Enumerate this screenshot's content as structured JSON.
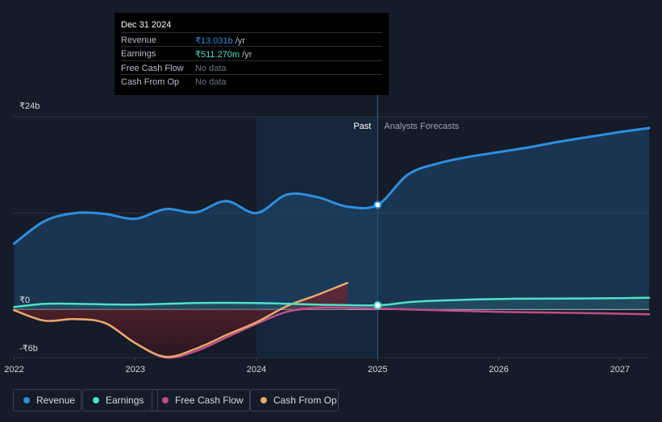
{
  "colors": {
    "revenue": "#2d8fe0",
    "earnings": "#4fe0c9",
    "free_cash_flow": "#c24c8c",
    "cash_from_op": "#e8a968",
    "background": "#151b28",
    "grid": "#2b3342"
  },
  "tooltip": {
    "date": "Dec 31 2024",
    "rows": [
      {
        "label": "Revenue",
        "value": "₹13.031b",
        "unit": " /yr",
        "color": "#2d8fe0"
      },
      {
        "label": "Earnings",
        "value": "₹511.270m",
        "unit": " /yr",
        "color": "#4fe0c9"
      },
      {
        "label": "Free Cash Flow",
        "value": "No data",
        "unit": "",
        "color": "#6b7280"
      },
      {
        "label": "Cash From Op",
        "value": "No data",
        "unit": "",
        "color": "#6b7280"
      }
    ]
  },
  "legend": [
    {
      "label": "Revenue",
      "color": "#2d8fe0"
    },
    {
      "label": "Earnings",
      "color": "#4fe0c9"
    },
    {
      "label": "Free Cash Flow",
      "color": "#c24c8c"
    },
    {
      "label": "Cash From Op",
      "color": "#e8a968"
    }
  ],
  "chart_data": {
    "type": "area",
    "title": "",
    "xlabel": "",
    "ylabel": "",
    "x_ticks": [
      "2022",
      "2023",
      "2024",
      "2025",
      "2026",
      "2027"
    ],
    "x_tick_values": [
      2022,
      2023,
      2024,
      2025,
      2026,
      2027
    ],
    "y_ticks": [
      "₹24b",
      "₹0",
      "-₹6b"
    ],
    "y_tick_values": [
      24,
      0,
      -6
    ],
    "xlim": [
      2021.99,
      2027.24
    ],
    "ylim": [
      -6,
      24
    ],
    "past_label": "Past",
    "forecast_label": "Analysts Forecasts",
    "divider_x": 2025.0,
    "highlight_start_x": 2024.0,
    "marker_x": 2025.0,
    "series": [
      {
        "name": "Revenue",
        "key": "revenue",
        "x": [
          2022.0,
          2022.25,
          2022.5,
          2022.75,
          2023.0,
          2023.25,
          2023.5,
          2023.75,
          2024.0,
          2024.25,
          2024.5,
          2024.75,
          2025.0,
          2025.25,
          2025.5,
          2025.75,
          2026.0,
          2026.25,
          2026.5,
          2026.75,
          2027.0,
          2027.24
        ],
        "values": [
          8.2,
          11.0,
          12.0,
          11.9,
          11.3,
          12.5,
          12.1,
          13.5,
          12.0,
          14.3,
          14.0,
          12.8,
          13.03,
          16.8,
          18.2,
          19.0,
          19.6,
          20.2,
          20.9,
          21.5,
          22.1,
          22.6
        ]
      },
      {
        "name": "Earnings",
        "key": "earnings",
        "x": [
          2022.0,
          2022.25,
          2022.5,
          2023.0,
          2023.5,
          2024.0,
          2024.5,
          2025.0,
          2025.25,
          2025.5,
          2026.0,
          2026.5,
          2027.0,
          2027.24
        ],
        "values": [
          0.3,
          0.7,
          0.7,
          0.6,
          0.8,
          0.8,
          0.6,
          0.51,
          0.9,
          1.1,
          1.3,
          1.35,
          1.4,
          1.45
        ]
      },
      {
        "name": "Free Cash Flow",
        "key": "free_cash_flow",
        "x": [
          2022.0,
          2022.25,
          2022.5,
          2022.75,
          2023.0,
          2023.25,
          2023.5,
          2023.75,
          2024.0,
          2024.25,
          2024.5,
          2024.75,
          2025.0,
          2025.5,
          2026.0,
          2026.5,
          2027.24
        ],
        "values": [
          -0.1,
          -1.4,
          -1.2,
          -1.7,
          -4.2,
          -6.0,
          -5.2,
          -3.5,
          -1.8,
          -0.3,
          0.2,
          0.2,
          0.1,
          -0.1,
          -0.3,
          -0.4,
          -0.6
        ]
      },
      {
        "name": "Cash From Op",
        "key": "cash_from_op",
        "x": [
          2022.0,
          2022.25,
          2022.5,
          2022.75,
          2023.0,
          2023.25,
          2023.5,
          2023.75,
          2024.0,
          2024.25,
          2024.5,
          2024.75
        ],
        "values": [
          -0.1,
          -1.4,
          -1.2,
          -1.7,
          -4.2,
          -5.9,
          -4.9,
          -3.2,
          -1.6,
          0.4,
          1.8,
          3.3
        ]
      }
    ]
  }
}
